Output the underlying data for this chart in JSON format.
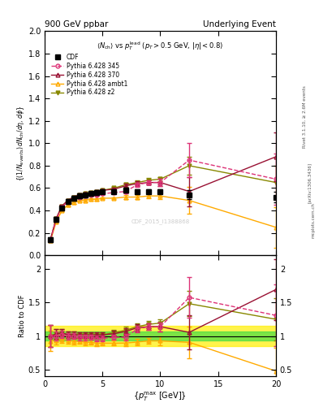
{
  "title_left": "900 GeV ppbar",
  "title_right": "Underlying Event",
  "watermark": "CDF_2015_I1388868",
  "rivet_label": "Rivet 3.1.10, ≥ 2.6M events",
  "arxiv_label": "[arXiv:1306.3436]",
  "mcplots_label": "mcplots.cern.ch",
  "cdf_x": [
    0.5,
    1.0,
    1.5,
    2.0,
    2.5,
    3.0,
    3.5,
    4.0,
    4.5,
    5.0,
    6.0,
    7.0,
    8.0,
    9.0,
    10.0,
    12.5,
    20.0
  ],
  "cdf_y": [
    0.14,
    0.32,
    0.42,
    0.48,
    0.51,
    0.53,
    0.54,
    0.55,
    0.56,
    0.57,
    0.57,
    0.58,
    0.57,
    0.57,
    0.57,
    0.54,
    0.52
  ],
  "cdf_yerr": [
    0.02,
    0.02,
    0.02,
    0.02,
    0.02,
    0.02,
    0.02,
    0.02,
    0.02,
    0.02,
    0.02,
    0.02,
    0.02,
    0.02,
    0.02,
    0.04,
    0.05
  ],
  "p345_x": [
    0.5,
    1.0,
    1.5,
    2.0,
    2.5,
    3.0,
    3.5,
    4.0,
    4.5,
    5.0,
    6.0,
    7.0,
    8.0,
    9.0,
    10.0,
    12.5,
    20.0
  ],
  "p345_y": [
    0.14,
    0.32,
    0.43,
    0.48,
    0.51,
    0.52,
    0.53,
    0.54,
    0.54,
    0.55,
    0.56,
    0.57,
    0.63,
    0.65,
    0.65,
    0.85,
    0.68
  ],
  "p345_yerr": [
    0.01,
    0.01,
    0.01,
    0.01,
    0.01,
    0.01,
    0.01,
    0.01,
    0.01,
    0.01,
    0.01,
    0.02,
    0.02,
    0.02,
    0.03,
    0.15,
    0.23
  ],
  "p370_x": [
    0.5,
    1.0,
    1.5,
    2.0,
    2.5,
    3.0,
    3.5,
    4.0,
    4.5,
    5.0,
    6.0,
    7.0,
    8.0,
    9.0,
    10.0,
    12.5,
    20.0
  ],
  "p370_y": [
    0.14,
    0.33,
    0.44,
    0.49,
    0.52,
    0.54,
    0.55,
    0.56,
    0.57,
    0.58,
    0.59,
    0.62,
    0.64,
    0.65,
    0.65,
    0.57,
    0.88
  ],
  "p370_yerr": [
    0.01,
    0.01,
    0.01,
    0.01,
    0.01,
    0.01,
    0.01,
    0.01,
    0.01,
    0.01,
    0.01,
    0.02,
    0.02,
    0.02,
    0.03,
    0.13,
    0.22
  ],
  "pambt_x": [
    0.5,
    1.0,
    1.5,
    2.0,
    2.5,
    3.0,
    3.5,
    4.0,
    4.5,
    5.0,
    6.0,
    7.0,
    8.0,
    9.0,
    10.0,
    12.5,
    20.0
  ],
  "pambt_y": [
    0.13,
    0.3,
    0.4,
    0.45,
    0.47,
    0.49,
    0.49,
    0.5,
    0.5,
    0.51,
    0.51,
    0.52,
    0.52,
    0.53,
    0.53,
    0.49,
    0.25
  ],
  "pambt_yerr": [
    0.01,
    0.01,
    0.01,
    0.01,
    0.01,
    0.01,
    0.01,
    0.01,
    0.01,
    0.01,
    0.01,
    0.02,
    0.02,
    0.02,
    0.03,
    0.12,
    0.18
  ],
  "pz2_x": [
    0.5,
    1.0,
    1.5,
    2.0,
    2.5,
    3.0,
    3.5,
    4.0,
    4.5,
    5.0,
    6.0,
    7.0,
    8.0,
    9.0,
    10.0,
    12.5,
    20.0
  ],
  "pz2_y": [
    0.14,
    0.33,
    0.44,
    0.49,
    0.52,
    0.54,
    0.55,
    0.56,
    0.57,
    0.58,
    0.6,
    0.63,
    0.65,
    0.67,
    0.68,
    0.8,
    0.65
  ],
  "pz2_yerr": [
    0.01,
    0.01,
    0.01,
    0.01,
    0.01,
    0.01,
    0.01,
    0.01,
    0.01,
    0.01,
    0.01,
    0.02,
    0.02,
    0.02,
    0.02,
    0.08,
    0.15
  ],
  "color_cdf": "#000000",
  "color_p345": "#dd3377",
  "color_p370": "#991133",
  "color_pambt": "#ffaa00",
  "color_pz2": "#888800",
  "ylim_main": [
    0.0,
    2.0
  ],
  "ylim_ratio": [
    0.4,
    2.2
  ],
  "xlim": [
    0.0,
    20.0
  ],
  "yticks_main": [
    0.0,
    0.2,
    0.4,
    0.6,
    0.8,
    1.0,
    1.2,
    1.4,
    1.6,
    1.8,
    2.0
  ],
  "yticks_ratio": [
    0.5,
    1.0,
    1.5,
    2.0
  ],
  "xticks": [
    0,
    5,
    10,
    15,
    20
  ],
  "ratio_band_yellow": 0.15,
  "ratio_band_green": 0.07
}
